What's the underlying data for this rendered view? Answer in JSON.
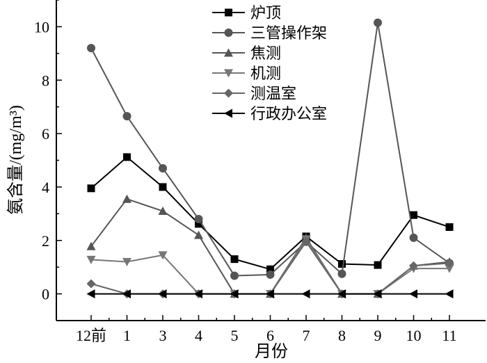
{
  "chart_data": {
    "type": "line",
    "categories": [
      "12前",
      "1",
      "3",
      "4",
      "5",
      "6",
      "7",
      "8",
      "9",
      "10",
      "11"
    ],
    "xlabel": "月份",
    "ylabel": "氨含量/(mg/m³)",
    "ylim": [
      -1,
      11
    ],
    "yticks": [
      0,
      2,
      4,
      6,
      8,
      10
    ],
    "grid": false,
    "legend_position": "top-right",
    "series": [
      {
        "name": "炉顶",
        "marker": "square",
        "color": "#000000",
        "values": [
          3.95,
          5.12,
          4.0,
          2.62,
          1.3,
          0.92,
          2.15,
          1.12,
          1.08,
          2.95,
          2.5
        ]
      },
      {
        "name": "三管操作架",
        "marker": "circle",
        "color": "#555555",
        "values": [
          9.2,
          6.65,
          4.7,
          2.8,
          0.68,
          0.72,
          1.95,
          0.75,
          10.15,
          2.1,
          1.15
        ]
      },
      {
        "name": "焦测",
        "marker": "triangle-up",
        "color": "#555555",
        "values": [
          1.78,
          3.55,
          3.1,
          2.2,
          0,
          0,
          2.1,
          0,
          0,
          1.05,
          1.2
        ]
      },
      {
        "name": "机测",
        "marker": "triangle-down",
        "color": "#777777",
        "values": [
          1.28,
          1.2,
          1.45,
          0,
          0,
          0,
          2.05,
          0,
          0,
          0.95,
          0.95
        ]
      },
      {
        "name": "测温室",
        "marker": "diamond",
        "color": "#666666",
        "values": [
          0.38,
          0,
          0,
          0,
          0,
          0,
          1.95,
          0,
          0,
          1.05,
          1.15
        ]
      },
      {
        "name": "行政办公室",
        "marker": "triangle-left",
        "color": "#000000",
        "values": [
          0,
          0,
          0,
          0,
          0,
          0,
          0,
          0,
          0,
          0,
          0
        ]
      }
    ]
  }
}
